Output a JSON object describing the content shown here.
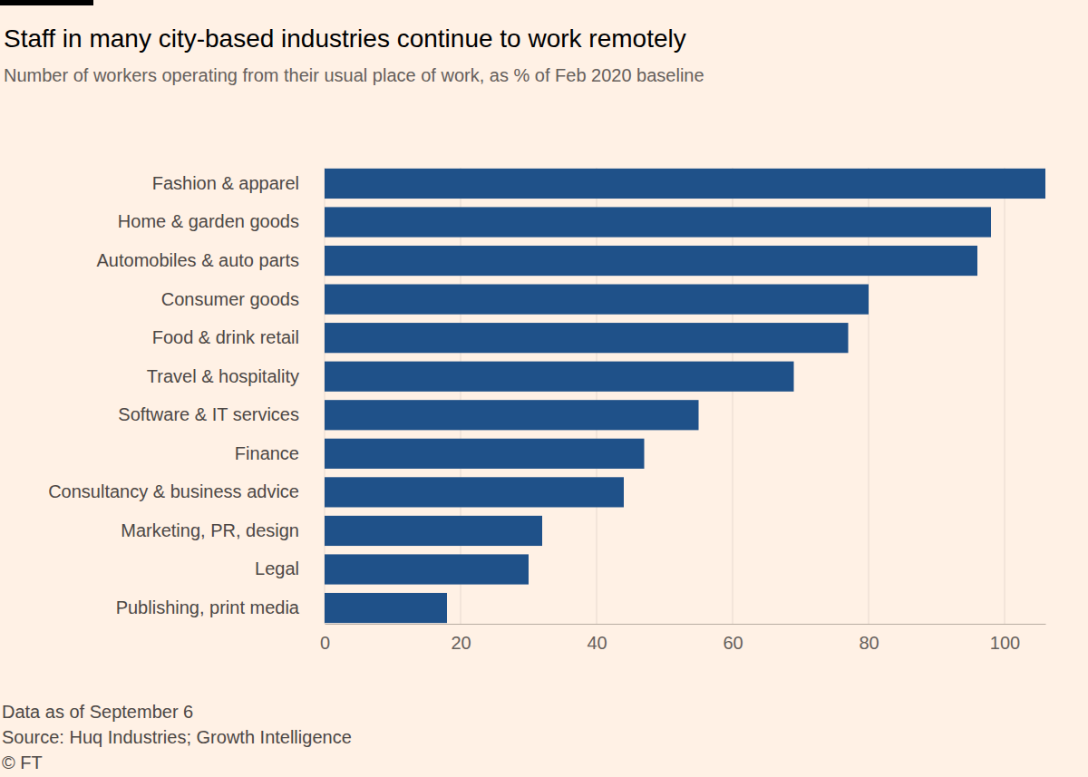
{
  "chart_data": {
    "type": "bar",
    "orientation": "horizontal",
    "title": "Staff in many city-based industries continue to work remotely",
    "subtitle": "Number of workers operating from their usual place of work, as % of Feb 2020 baseline",
    "categories": [
      "Fashion & apparel",
      "Home & garden goods",
      "Automobiles & auto parts",
      "Consumer goods",
      "Food & drink retail",
      "Travel & hospitality",
      "Software & IT services",
      "Finance",
      "Consultancy & business advice",
      "Marketing, PR, design",
      "Legal",
      "Publishing, print media"
    ],
    "values": [
      106,
      98,
      96,
      80,
      77,
      69,
      55,
      47,
      44,
      32,
      30,
      18
    ],
    "color": "#1f5189",
    "xlim": [
      0,
      106
    ],
    "xticks": [
      0,
      20,
      40,
      60,
      80,
      100
    ],
    "grid": true,
    "annotations": [
      "Data as of September 6",
      "Source: Huq Industries; Growth Intelligence",
      "© FT"
    ]
  }
}
